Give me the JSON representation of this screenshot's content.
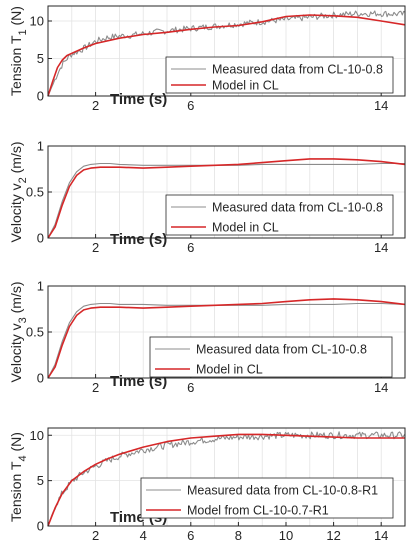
{
  "chart_data": [
    {
      "type": "line",
      "ylabel": "Tension T",
      "ylabel_sub": "1",
      "ylabel_unit": " (N)",
      "xlabel": "Time (s)",
      "xlim": [
        0,
        15
      ],
      "ylim": [
        0,
        12
      ],
      "yticks": [
        "0",
        "5",
        "10"
      ],
      "ytick_values": [
        0,
        5,
        10
      ],
      "xticks": [
        "2",
        "6",
        "14"
      ],
      "xtick_values": [
        2,
        6,
        14
      ],
      "grid": true,
      "legend": "bottom-right",
      "series": [
        {
          "name": "Measured data from CL-10-0.8",
          "color": "#8c8c8c",
          "noisy": true,
          "x": [
            0,
            0.2,
            0.4,
            0.6,
            0.8,
            1.0,
            1.3,
            1.6,
            2.0,
            2.5,
            3.0,
            3.5,
            4.0,
            5.0,
            6.0,
            7.0,
            8.0,
            9.0,
            10.0,
            11.0,
            12.0,
            13.0,
            14.0,
            15.0
          ],
          "y": [
            0,
            1.5,
            3.0,
            4.2,
            5.0,
            5.6,
            6.0,
            6.5,
            7.3,
            7.8,
            8.0,
            8.1,
            8.3,
            8.7,
            9.0,
            9.3,
            9.6,
            9.9,
            10.2,
            10.5,
            10.8,
            11.0,
            11.0,
            10.9
          ]
        },
        {
          "name": "Model in CL",
          "color": "#d62728",
          "noisy": false,
          "x": [
            0,
            0.2,
            0.4,
            0.6,
            0.8,
            1.0,
            1.5,
            2.0,
            3.0,
            4.0,
            5.0,
            6.0,
            7.0,
            8.0,
            9.0,
            10.0,
            11.0,
            12.0,
            13.0,
            14.0,
            15.0
          ],
          "y": [
            0,
            2.0,
            3.8,
            4.8,
            5.4,
            5.7,
            6.4,
            7.0,
            7.7,
            8.2,
            8.5,
            8.9,
            9.2,
            9.4,
            9.9,
            10.6,
            10.8,
            10.7,
            10.5,
            10.0,
            9.5
          ]
        }
      ]
    },
    {
      "type": "line",
      "ylabel": "Velocity v",
      "ylabel_sub": "2",
      "ylabel_unit": " (m/s)",
      "xlabel": "Time (s)",
      "xlim": [
        0,
        15
      ],
      "ylim": [
        0,
        1
      ],
      "yticks": [
        "0",
        "0.5",
        "1"
      ],
      "ytick_values": [
        0,
        0.5,
        1
      ],
      "xticks": [
        "2",
        "6",
        "14"
      ],
      "xtick_values": [
        2,
        6,
        14
      ],
      "grid": true,
      "legend": "bottom-right",
      "series": [
        {
          "name": "Measured data from CL-10-0.8",
          "color": "#8c8c8c",
          "noisy": false,
          "x": [
            0,
            0.3,
            0.6,
            0.9,
            1.2,
            1.5,
            1.8,
            2.2,
            2.6,
            3.0,
            4.0,
            5.0,
            6.0,
            7.0,
            8.0,
            9.0,
            10.0,
            11.0,
            12.0,
            13.0,
            14.0,
            15.0
          ],
          "y": [
            0,
            0.15,
            0.4,
            0.6,
            0.72,
            0.78,
            0.8,
            0.81,
            0.81,
            0.8,
            0.79,
            0.79,
            0.79,
            0.79,
            0.79,
            0.8,
            0.8,
            0.8,
            0.8,
            0.8,
            0.81,
            0.81
          ]
        },
        {
          "name": "Model in CL",
          "color": "#d62728",
          "noisy": false,
          "x": [
            0,
            0.3,
            0.6,
            0.9,
            1.2,
            1.5,
            1.8,
            2.2,
            2.6,
            3.0,
            4.0,
            5.0,
            6.0,
            7.0,
            8.0,
            9.0,
            10.0,
            11.0,
            12.0,
            13.0,
            14.0,
            15.0
          ],
          "y": [
            0,
            0.12,
            0.36,
            0.56,
            0.68,
            0.74,
            0.76,
            0.77,
            0.77,
            0.77,
            0.76,
            0.77,
            0.78,
            0.79,
            0.8,
            0.82,
            0.84,
            0.86,
            0.86,
            0.85,
            0.83,
            0.8
          ]
        }
      ]
    },
    {
      "type": "line",
      "ylabel": "Velocity v",
      "ylabel_sub": "3",
      "ylabel_unit": " (m/s)",
      "xlabel": "Time (s)",
      "xlim": [
        0,
        15
      ],
      "ylim": [
        0,
        1
      ],
      "yticks": [
        "0",
        "0.5",
        "1"
      ],
      "ytick_values": [
        0,
        0.5,
        1
      ],
      "xticks": [
        "2",
        "6",
        "14"
      ],
      "xtick_values": [
        2,
        6,
        14
      ],
      "grid": true,
      "legend": "bottom-right",
      "series": [
        {
          "name": "Measured data from CL-10-0.8",
          "color": "#8c8c8c",
          "noisy": false,
          "x": [
            0,
            0.3,
            0.6,
            0.9,
            1.2,
            1.5,
            1.8,
            2.2,
            2.6,
            3.0,
            4.0,
            5.0,
            6.0,
            7.0,
            8.0,
            9.0,
            10.0,
            11.0,
            12.0,
            13.0,
            14.0,
            15.0
          ],
          "y": [
            0,
            0.15,
            0.4,
            0.6,
            0.72,
            0.78,
            0.8,
            0.81,
            0.81,
            0.8,
            0.8,
            0.79,
            0.79,
            0.79,
            0.79,
            0.79,
            0.8,
            0.8,
            0.8,
            0.81,
            0.81,
            0.8
          ]
        },
        {
          "name": "Model in CL",
          "color": "#d62728",
          "noisy": false,
          "x": [
            0,
            0.3,
            0.6,
            0.9,
            1.2,
            1.5,
            1.8,
            2.2,
            2.6,
            3.0,
            4.0,
            5.0,
            6.0,
            7.0,
            8.0,
            9.0,
            10.0,
            11.0,
            12.0,
            13.0,
            14.0,
            15.0
          ],
          "y": [
            0,
            0.12,
            0.36,
            0.56,
            0.68,
            0.74,
            0.76,
            0.77,
            0.77,
            0.77,
            0.76,
            0.77,
            0.78,
            0.79,
            0.8,
            0.81,
            0.83,
            0.85,
            0.86,
            0.85,
            0.83,
            0.8
          ]
        }
      ]
    },
    {
      "type": "line",
      "ylabel": "Tension T",
      "ylabel_sub": "4",
      "ylabel_unit": " (N)",
      "xlabel": "Time (s)",
      "xlim": [
        0,
        15
      ],
      "ylim": [
        0,
        10.8
      ],
      "yticks": [
        "0",
        "5",
        "10"
      ],
      "ytick_values": [
        0,
        5,
        10
      ],
      "xticks": [
        "2",
        "4",
        "6",
        "8",
        "10",
        "12",
        "14"
      ],
      "xtick_values": [
        2,
        4,
        6,
        8,
        10,
        12,
        14
      ],
      "grid": true,
      "legend": "bottom-right",
      "series": [
        {
          "name": "Measured data from CL-10-0.8-R1",
          "color": "#8c8c8c",
          "noisy": true,
          "x": [
            0,
            0.3,
            0.6,
            1.0,
            1.5,
            2.0,
            2.5,
            3.0,
            4.0,
            5.0,
            6.0,
            7.0,
            8.0,
            9.0,
            10.0,
            11.0,
            12.0,
            13.0,
            14.0,
            15.0
          ],
          "y": [
            0,
            2.2,
            3.6,
            4.9,
            5.9,
            6.6,
            7.2,
            7.7,
            8.4,
            8.9,
            9.3,
            9.6,
            9.8,
            9.9,
            10.0,
            10.0,
            10.0,
            10.0,
            10.0,
            10.0
          ]
        },
        {
          "name": "Model from CL-10-0.7-R1",
          "color": "#d62728",
          "noisy": false,
          "x": [
            0,
            0.3,
            0.6,
            1.0,
            1.5,
            2.0,
            2.5,
            3.0,
            4.0,
            5.0,
            6.0,
            7.0,
            8.0,
            9.0,
            10.0,
            11.0,
            12.0,
            13.0,
            14.0,
            15.0
          ],
          "y": [
            0,
            2.0,
            3.6,
            5.0,
            6.0,
            6.8,
            7.4,
            7.9,
            8.7,
            9.3,
            9.7,
            9.9,
            10.1,
            10.1,
            10.0,
            9.9,
            9.8,
            9.7,
            9.7,
            9.7
          ]
        }
      ]
    }
  ]
}
